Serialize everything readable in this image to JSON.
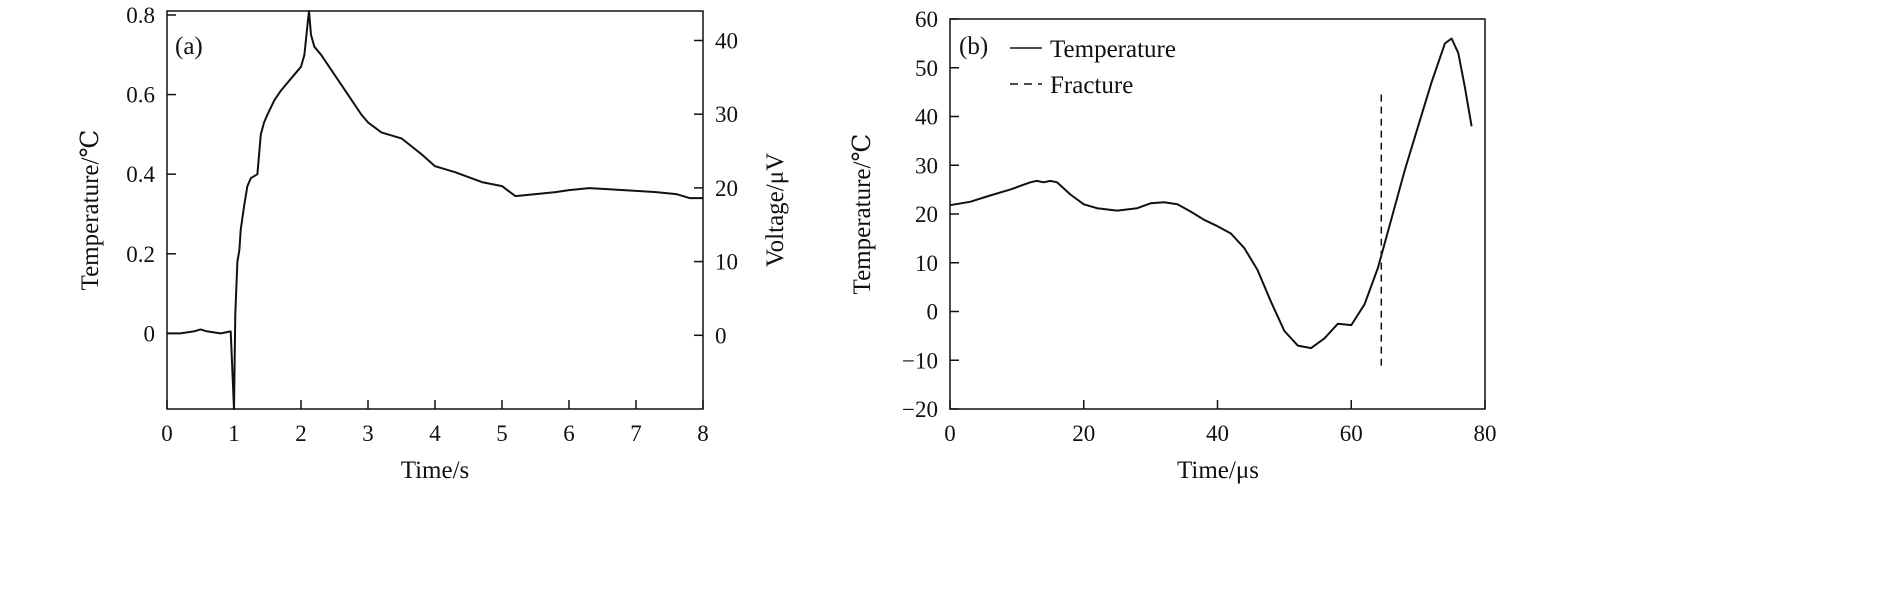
{
  "chart_data": [
    {
      "panel_label": "(a)",
      "type": "line",
      "xlabel": "Time/s",
      "ylabel": "Temperature/℃",
      "y2label": "Voltage/μV",
      "xlim": [
        0,
        8
      ],
      "ylim": [
        -0.19,
        0.81
      ],
      "y2lim": [
        -10,
        44
      ],
      "xticks": [
        0,
        1,
        2,
        3,
        4,
        5,
        6,
        7,
        8
      ],
      "xtick_labels": [
        "0",
        "1",
        "2",
        "3",
        "4",
        "5",
        "6",
        "7",
        "8"
      ],
      "yticks": [
        0,
        0.2,
        0.4,
        0.6,
        0.8
      ],
      "ytick_labels": [
        "0",
        "0.2",
        "0.4",
        "0.6",
        "0.8"
      ],
      "y2ticks": [
        0,
        10,
        20,
        30,
        40
      ],
      "y2tick_labels": [
        "0",
        "10",
        "20",
        "30",
        "40"
      ],
      "grid": false,
      "series": [
        {
          "style": "solid",
          "color": "#111111",
          "x": [
            0,
            0.2,
            0.4,
            0.5,
            0.6,
            0.8,
            0.95,
            1.0,
            1.02,
            1.05,
            1.08,
            1.1,
            1.15,
            1.2,
            1.25,
            1.3,
            1.35,
            1.4,
            1.45,
            1.5,
            1.6,
            1.7,
            1.8,
            1.9,
            2.0,
            2.05,
            2.1,
            2.12,
            2.15,
            2.2,
            2.3,
            2.5,
            2.7,
            2.9,
            3.0,
            3.2,
            3.5,
            3.8,
            4.0,
            4.3,
            4.7,
            5.0,
            5.2,
            5.5,
            5.8,
            6.0,
            6.3,
            6.6,
            7.0,
            7.3,
            7.6,
            7.8,
            8.0
          ],
          "y": [
            0.0,
            0.0,
            0.005,
            0.01,
            0.005,
            0.0,
            0.005,
            -0.19,
            0.05,
            0.18,
            0.21,
            0.26,
            0.32,
            0.37,
            0.39,
            0.395,
            0.4,
            0.5,
            0.53,
            0.55,
            0.585,
            0.61,
            0.63,
            0.65,
            0.67,
            0.7,
            0.78,
            0.81,
            0.75,
            0.72,
            0.7,
            0.65,
            0.6,
            0.55,
            0.53,
            0.505,
            0.49,
            0.45,
            0.42,
            0.405,
            0.38,
            0.37,
            0.345,
            0.35,
            0.355,
            0.36,
            0.365,
            0.362,
            0.358,
            0.355,
            0.35,
            0.34,
            0.34
          ]
        }
      ]
    },
    {
      "panel_label": "(b)",
      "type": "line",
      "xlabel": "Time/μs",
      "ylabel": "Temperature/℃",
      "xlim": [
        0,
        80
      ],
      "ylim": [
        -20,
        60
      ],
      "xticks": [
        0,
        20,
        40,
        60,
        80
      ],
      "xtick_labels": [
        "0",
        "20",
        "40",
        "60",
        "80"
      ],
      "yticks": [
        -20,
        -10,
        0,
        10,
        20,
        30,
        40,
        50,
        60
      ],
      "ytick_labels": [
        "−20",
        "−10",
        "0",
        "10",
        "20",
        "30",
        "40",
        "50",
        "60"
      ],
      "grid": false,
      "legend_position": "top-left",
      "series": [
        {
          "name": "Temperature",
          "style": "solid",
          "color": "#111111",
          "x": [
            0,
            3,
            6,
            9,
            12,
            13,
            14,
            15,
            16,
            18,
            20,
            22,
            25,
            28,
            30,
            32,
            34,
            36,
            38,
            40,
            42,
            44,
            46,
            48,
            50,
            52,
            54,
            56,
            58,
            60,
            62,
            64,
            66,
            68,
            70,
            72,
            74,
            75,
            76,
            77,
            78
          ],
          "y": [
            21.8,
            22.5,
            23.8,
            25.0,
            26.5,
            26.8,
            26.5,
            26.8,
            26.5,
            24.0,
            22.0,
            21.2,
            20.7,
            21.2,
            22.2,
            22.4,
            22.0,
            20.5,
            18.8,
            17.5,
            16.0,
            13.0,
            8.5,
            2.0,
            -4.0,
            -7.0,
            -7.5,
            -5.5,
            -2.5,
            -2.8,
            1.5,
            9.0,
            19.0,
            29.0,
            38.0,
            47.0,
            55.0,
            56.0,
            53.0,
            46.0,
            38.0
          ]
        },
        {
          "name": "Fracture",
          "style": "dashed",
          "color": "#111111",
          "x": [
            64.5,
            64.5
          ],
          "y": [
            44.5,
            -12.0
          ]
        }
      ]
    }
  ]
}
